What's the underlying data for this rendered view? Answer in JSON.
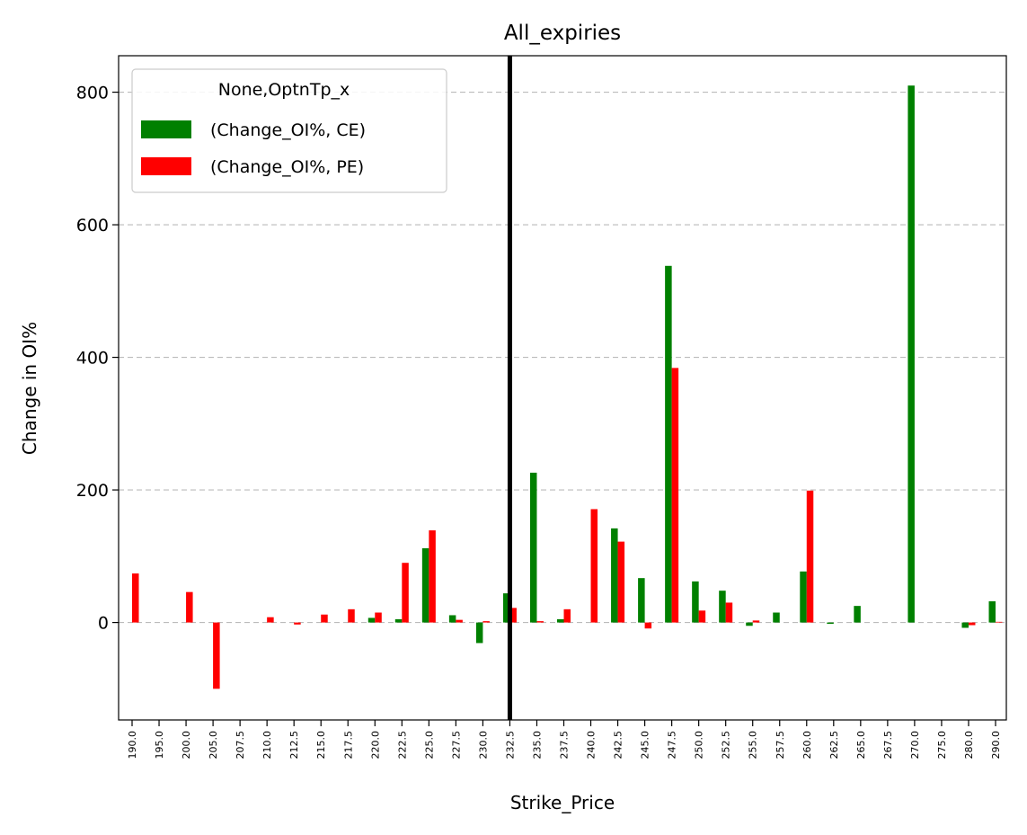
{
  "chart_data": {
    "type": "bar",
    "title": "All_expiries",
    "xlabel": "Strike_Price",
    "ylabel": "Change in OI%",
    "categories": [
      "190.0",
      "195.0",
      "200.0",
      "205.0",
      "207.5",
      "210.0",
      "212.5",
      "215.0",
      "217.5",
      "220.0",
      "222.5",
      "225.0",
      "227.5",
      "230.0",
      "232.5",
      "235.0",
      "237.5",
      "240.0",
      "242.5",
      "245.0",
      "247.5",
      "250.0",
      "252.5",
      "255.0",
      "257.5",
      "260.0",
      "262.5",
      "265.0",
      "267.5",
      "270.0",
      "275.0",
      "280.0",
      "290.0"
    ],
    "series": [
      {
        "name": "(Change_OI%, CE)",
        "color": "#008000",
        "values": [
          0,
          0,
          0,
          0,
          0,
          0,
          0,
          0,
          0,
          7,
          5,
          112,
          11,
          -31,
          44,
          226,
          5,
          0,
          142,
          67,
          538,
          62,
          48,
          -5,
          15,
          77,
          -2,
          25,
          0,
          810,
          0,
          -8,
          32
        ]
      },
      {
        "name": "(Change_OI%, PE)",
        "color": "#ff0000",
        "values": [
          74,
          0,
          46,
          -100,
          0,
          8,
          -3,
          12,
          20,
          15,
          90,
          139,
          4,
          2,
          22,
          2,
          20,
          171,
          122,
          -9,
          384,
          18,
          30,
          3,
          0,
          199,
          0,
          0,
          0,
          0,
          0,
          -4,
          1
        ]
      }
    ],
    "ylim": [
      -147,
      855
    ],
    "yticks": [
      0,
      200,
      400,
      600,
      800
    ],
    "grid": "y-dashed",
    "vline_category": "232.5",
    "legend": {
      "title": "None,OptnTp_x",
      "placement": "top-left"
    }
  }
}
